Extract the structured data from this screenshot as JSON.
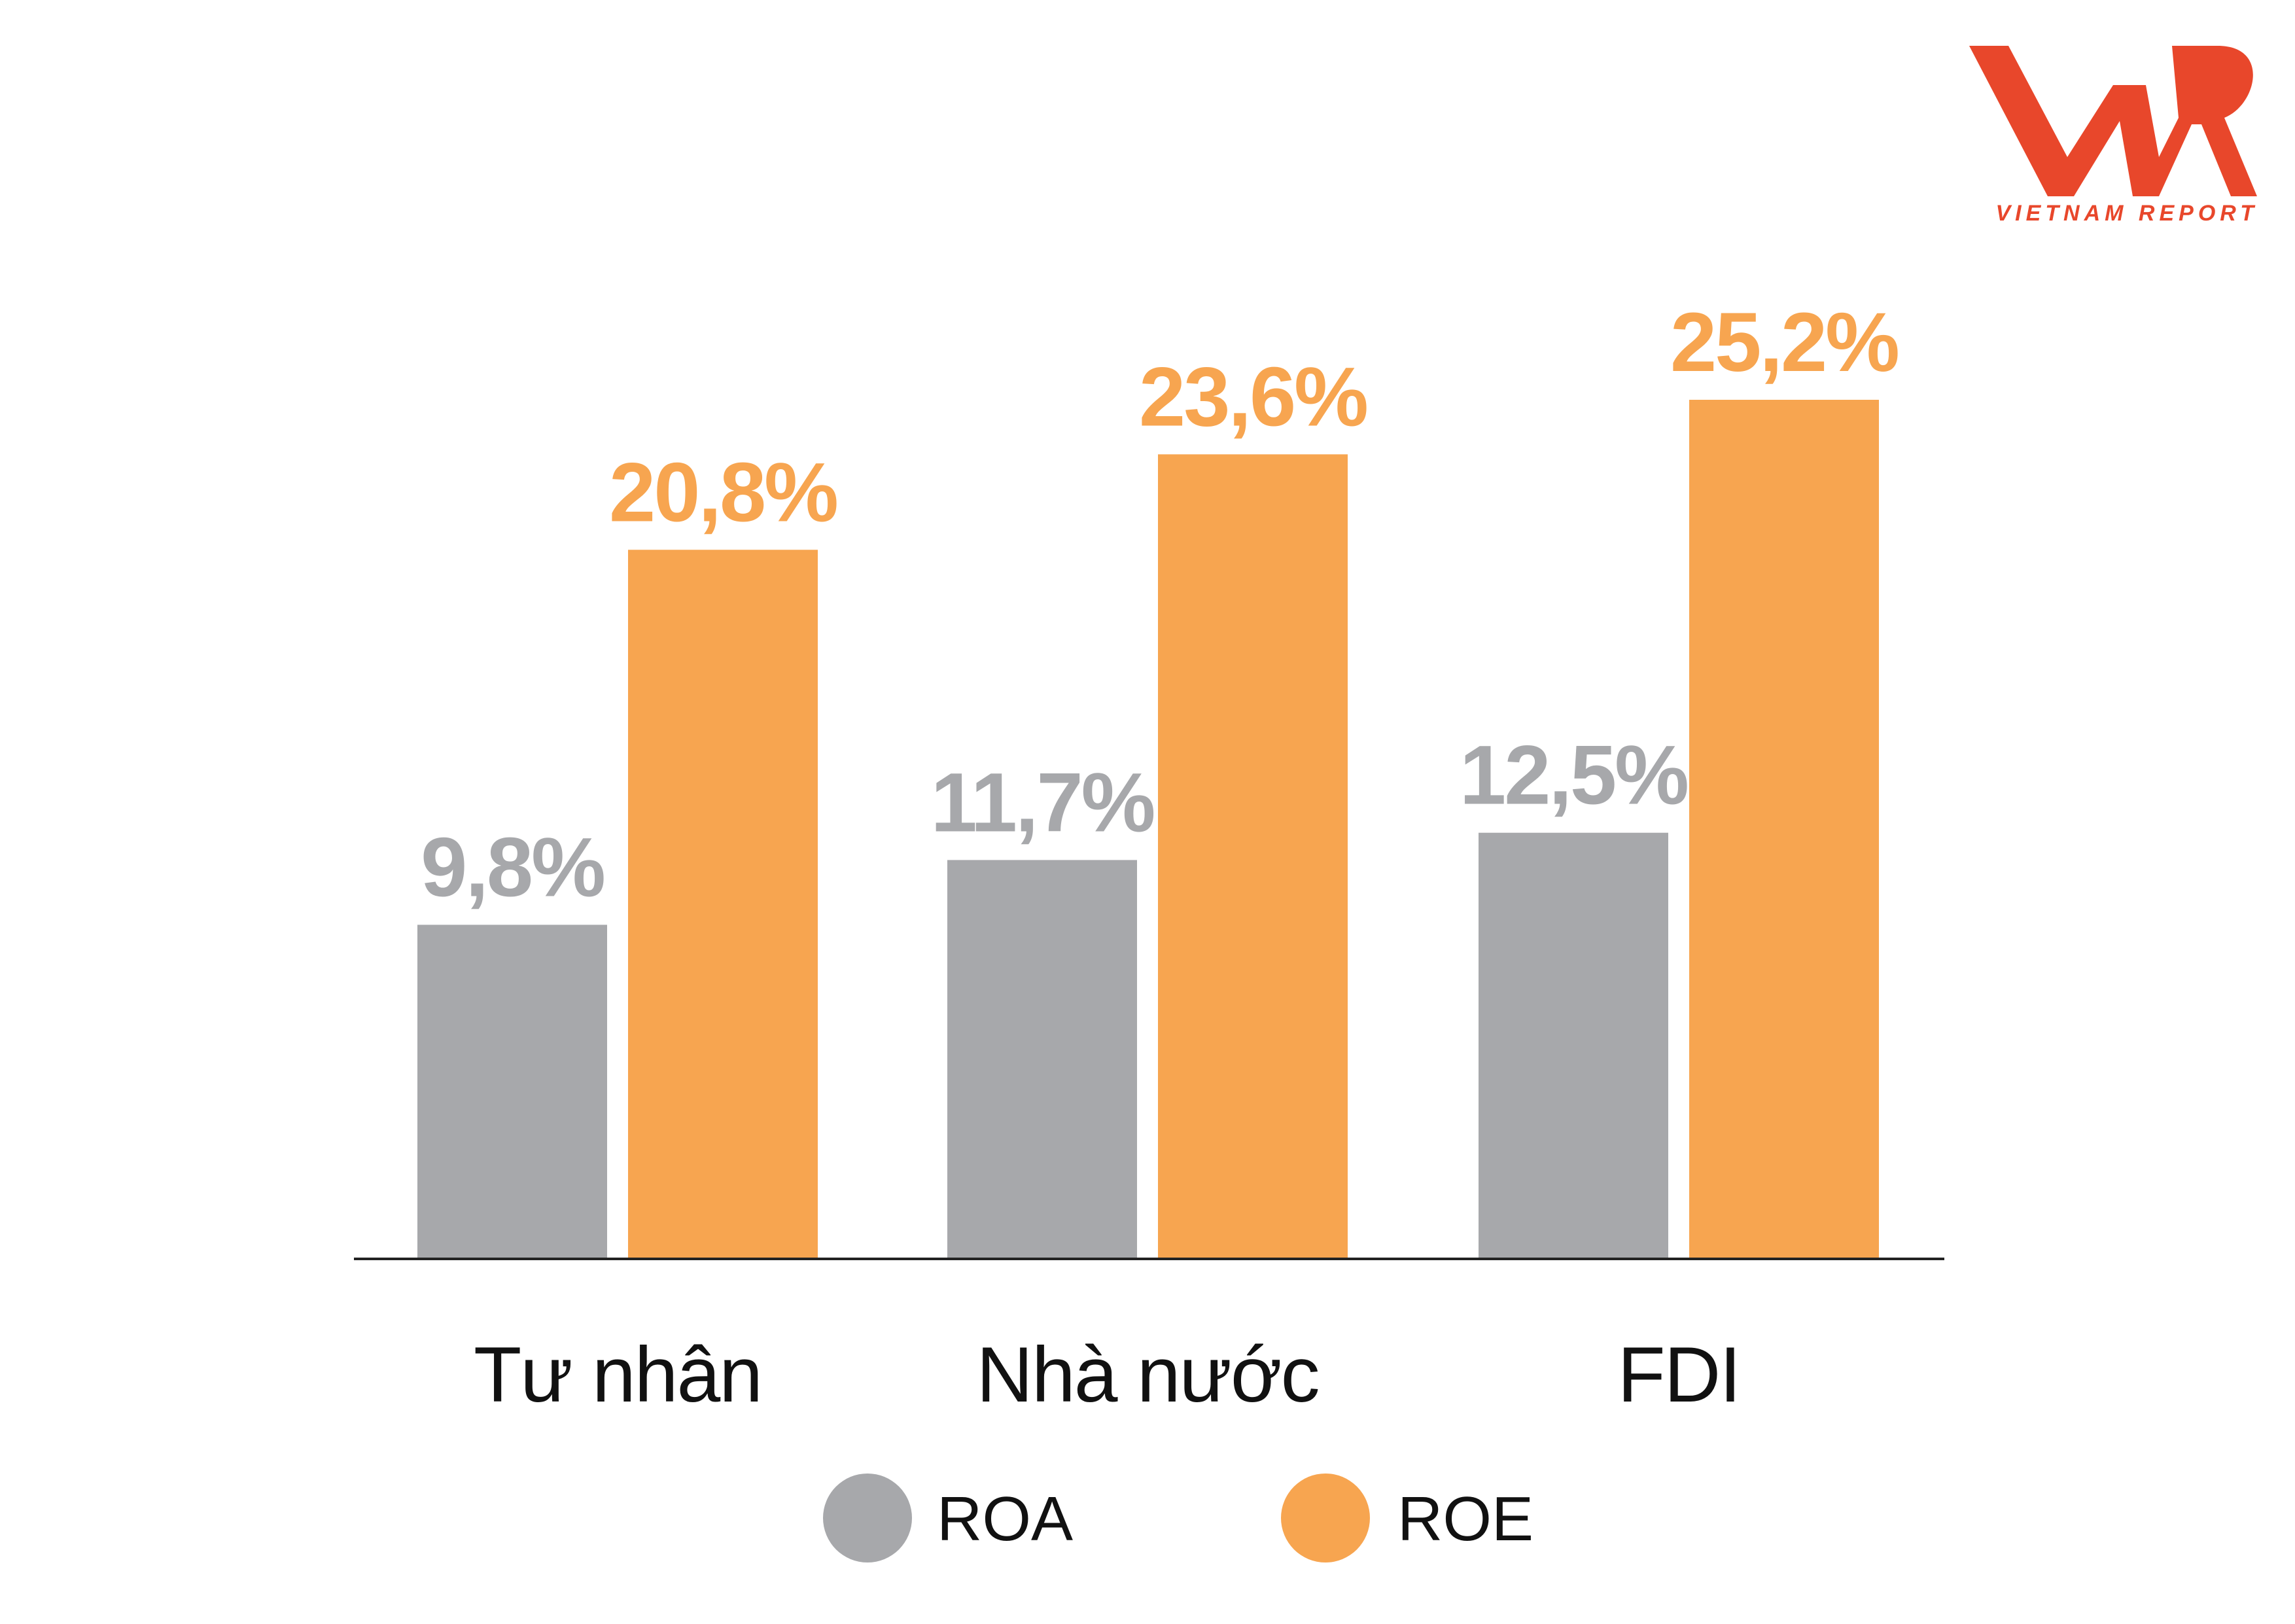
{
  "logo": {
    "caption": "VIETNAM REPORT",
    "color": "#e8472b"
  },
  "chart_data": {
    "type": "bar",
    "title": "",
    "xlabel": "",
    "ylabel": "",
    "categories": [
      "Tư nhân",
      "Nhà nước",
      "FDI"
    ],
    "series": [
      {
        "name": "ROA",
        "color": "#a7a8ab",
        "values": [
          9.8,
          11.7,
          12.5
        ],
        "labels": [
          "9,8%",
          "11,7%",
          "12,5%"
        ]
      },
      {
        "name": "ROE",
        "color": "#f7a550",
        "values": [
          20.8,
          23.6,
          25.2
        ],
        "labels": [
          "20,8%",
          "23,6%",
          "25,2%"
        ]
      }
    ],
    "ylim": [
      0,
      25.2
    ],
    "grid": false,
    "legend": "bottom-center"
  }
}
